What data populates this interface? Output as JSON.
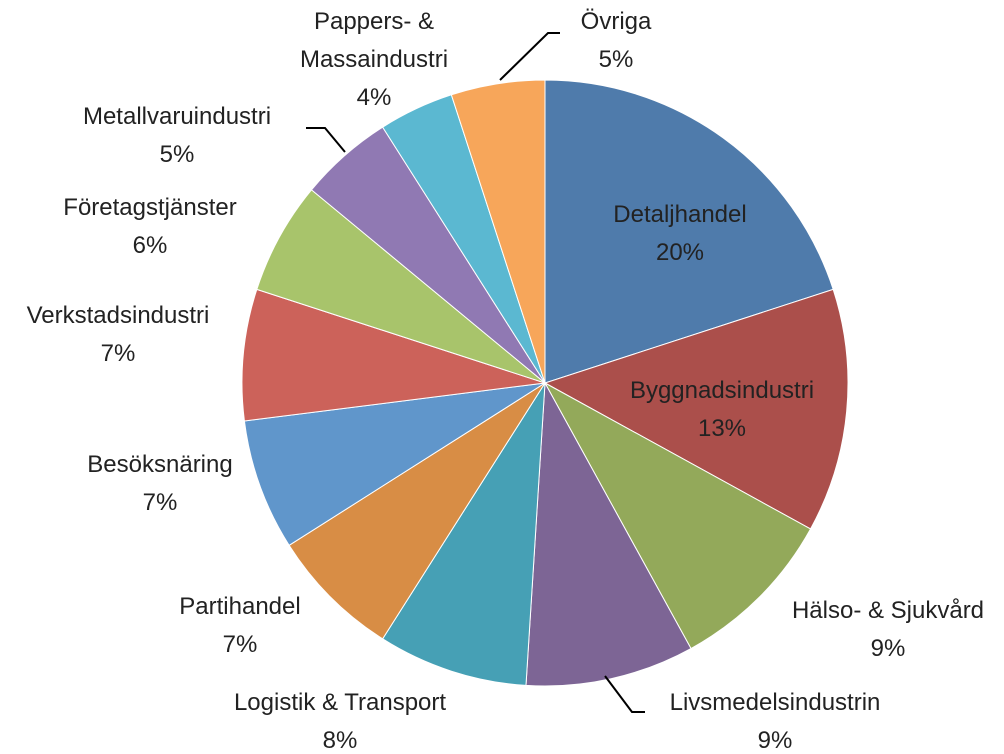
{
  "chart_data": {
    "type": "pie",
    "categories": [
      "Detaljhandel",
      "Byggnadsindustri",
      "Hälso- & Sjukvård",
      "Livsmedelsindustrin",
      "Logistik & Transport",
      "Partihandel",
      "Besöksnäring",
      "Verkstadsindustri",
      "Företagstjänster",
      "Metallvaruindustri",
      "Pappers- & Massaindustri",
      "Övriga"
    ],
    "values": [
      20,
      13,
      9,
      9,
      8,
      7,
      7,
      7,
      6,
      5,
      4,
      5
    ],
    "value_labels": [
      "20%",
      "13%",
      "9%",
      "9%",
      "8%",
      "7%",
      "7%",
      "7%",
      "6%",
      "5%",
      "4%",
      "5%"
    ],
    "colors": [
      "#4f7bab",
      "#ab4f4b",
      "#93a95a",
      "#7d6595",
      "#46a0b5",
      "#d88d45",
      "#6096cb",
      "#cc625a",
      "#a8c46b",
      "#9079b3",
      "#5bb8d1",
      "#f7a65a"
    ]
  }
}
